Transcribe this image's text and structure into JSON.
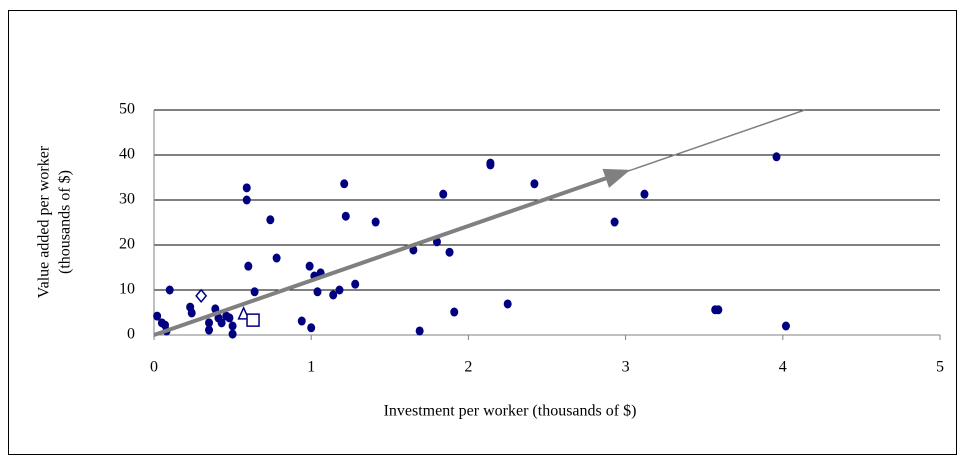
{
  "chart_data": {
    "type": "scatter",
    "x_label": "Investment per worker (thousands of $)",
    "y_label": [
      "Value added per worker",
      "(thousands of $)"
    ],
    "xlim": [
      0,
      5
    ],
    "xticks": [
      0,
      1,
      2,
      3,
      4,
      5
    ],
    "ylim": [
      0,
      50
    ],
    "yticks": [
      0,
      10,
      20,
      30,
      40,
      50
    ],
    "grid": true,
    "series": [
      {
        "color": "#000080",
        "marker": "dot",
        "x": [
          0.02,
          0.05,
          0.07,
          0.08,
          0.1,
          0.23,
          0.24,
          0.35,
          0.35,
          0.39,
          0.41,
          0.43,
          0.46,
          0.48,
          0.5,
          0.5,
          0.59,
          0.59,
          0.6,
          0.64,
          0.74,
          0.78,
          0.94,
          0.99,
          1.0,
          1.02,
          1.04,
          1.06,
          1.14,
          1.18,
          1.21,
          1.22,
          1.28,
          1.41,
          1.65,
          1.69,
          1.8,
          1.84,
          1.88,
          1.91,
          2.14,
          2.14,
          2.25,
          2.42,
          2.93,
          3.12,
          3.57,
          3.59,
          3.96,
          4.02
        ],
        "values": [
          4.2,
          2.7,
          2.2,
          0.9,
          10,
          6.2,
          4.9,
          2.7,
          1.1,
          5.8,
          3.8,
          2.7,
          4.2,
          3.8,
          2,
          0.2,
          32.7,
          30,
          15.3,
          9.6,
          25.6,
          17.1,
          3.1,
          15.3,
          1.6,
          13.1,
          9.6,
          13.8,
          8.9,
          10,
          33.6,
          26.4,
          11.3,
          25.1,
          18.9,
          0.9,
          20.7,
          31.3,
          18.4,
          5.1,
          38.2,
          37.8,
          6.9,
          33.6,
          25.1,
          31.3,
          5.6,
          5.6,
          39.6,
          2
        ]
      },
      {
        "color": "#000080",
        "marker": "diamond",
        "x": [
          0.3
        ],
        "values": [
          8.7
        ]
      },
      {
        "color": "#000080",
        "marker": "triangle",
        "x": [
          0.57
        ],
        "values": [
          4.7
        ]
      },
      {
        "color": "#000080",
        "marker": "square",
        "x": [
          0.63
        ],
        "values": [
          3.3
        ]
      }
    ],
    "trend_line": {
      "color": "#808080",
      "x": [
        0,
        4.14
      ],
      "values": [
        0,
        50
      ]
    },
    "arrow": {
      "color": "#808080",
      "x": [
        0,
        3.03
      ],
      "values": [
        0,
        36.7
      ]
    }
  }
}
